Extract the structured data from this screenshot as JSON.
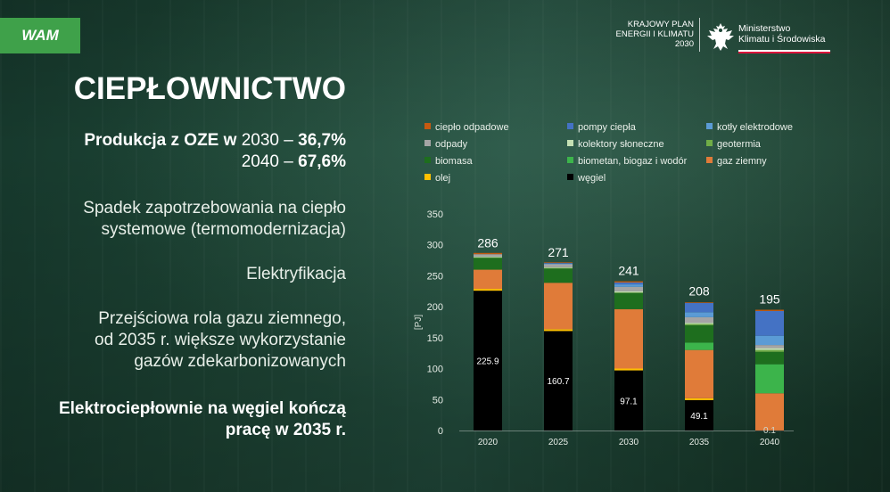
{
  "badge": "WAM",
  "logo": {
    "plan_line1": "KRAJOWY PLAN",
    "plan_line2": "ENERGII I KLIMATU",
    "plan_line3": "2030",
    "ministry_line1": "Ministerstwo",
    "ministry_line2": "Klimatu i Środowiska"
  },
  "slide": {
    "title": "CIEPŁOWNICTWO",
    "production": {
      "label": "Produkcja z OZE w",
      "year1": "2030",
      "value1": "36,7%",
      "year2": "2040",
      "value2": "67,6%",
      "dash": "–"
    },
    "point1_line1": "Spadek zapotrzebowania na ciepło",
    "point1_line2": "systemowe (termomodernizacja)",
    "point2": "Elektryfikacja",
    "point3_line1": "Przejściowa rola gazu ziemnego,",
    "point3_line2": "od 2035 r. większe wykorzystanie",
    "point3_line3": "gazów zdekarbonizowanych",
    "point4_line1": "Elektrociepłownie na węgiel kończą",
    "point4_line2": "pracę w 2035 r."
  },
  "chart_data": {
    "type": "bar",
    "stacked": true,
    "title": "",
    "xlabel": "",
    "ylabel": "[PJ]",
    "ylim": [
      0,
      350
    ],
    "yticks": [
      0,
      50,
      100,
      150,
      200,
      250,
      300,
      350
    ],
    "grid": false,
    "legend_position": "top",
    "categories": [
      "2020",
      "2025",
      "2030",
      "2035",
      "2040"
    ],
    "totals": [
      286,
      271,
      241,
      208,
      195
    ],
    "total_labels": [
      "286",
      "271",
      "241",
      "208",
      "195"
    ],
    "series": [
      {
        "name": "węgiel",
        "color": "#000000",
        "values": [
          225.9,
          160.7,
          97.1,
          49.1,
          0.1
        ],
        "labels": [
          "225.9",
          "160.7",
          "97.1",
          "49.1",
          "0.1"
        ]
      },
      {
        "name": "olej",
        "color": "#ffc000",
        "values": [
          3,
          3,
          3,
          3,
          0
        ]
      },
      {
        "name": "gaz ziemny",
        "color": "#e07b39",
        "values": [
          31,
          75,
          96,
          78,
          60
        ]
      },
      {
        "name": "biometan, biogaz i wodór",
        "color": "#3cb44b",
        "values": [
          0,
          0,
          0,
          12,
          47
        ]
      },
      {
        "name": "biomasa",
        "color": "#1e6e1e",
        "values": [
          19,
          23,
          26,
          28,
          20
        ]
      },
      {
        "name": "geotermia",
        "color": "#70ad47",
        "values": [
          1,
          1,
          1,
          2,
          3
        ]
      },
      {
        "name": "kolektory słoneczne",
        "color": "#c5e0b4",
        "values": [
          1,
          1,
          2,
          2,
          3
        ]
      },
      {
        "name": "odpady",
        "color": "#a5a5a5",
        "values": [
          4,
          5,
          7,
          9,
          5
        ]
      },
      {
        "name": "kotły elektrodowe",
        "color": "#5b9bd5",
        "values": [
          0,
          1,
          4,
          8,
          15
        ]
      },
      {
        "name": "pompy ciepła",
        "color": "#4472c4",
        "values": [
          0,
          1,
          3,
          15,
          40
        ]
      },
      {
        "name": "ciepło odpadowe",
        "color": "#c55a11",
        "values": [
          2,
          1,
          2,
          1,
          2
        ]
      }
    ],
    "legend_order": [
      "ciepło odpadowe",
      "pompy ciepła",
      "kotły elektrodowe",
      "odpady",
      "kolektory słoneczne",
      "geotermia",
      "biomasa",
      "biometan, biogaz i wodór",
      "gaz ziemny",
      "olej",
      "węgiel"
    ]
  }
}
